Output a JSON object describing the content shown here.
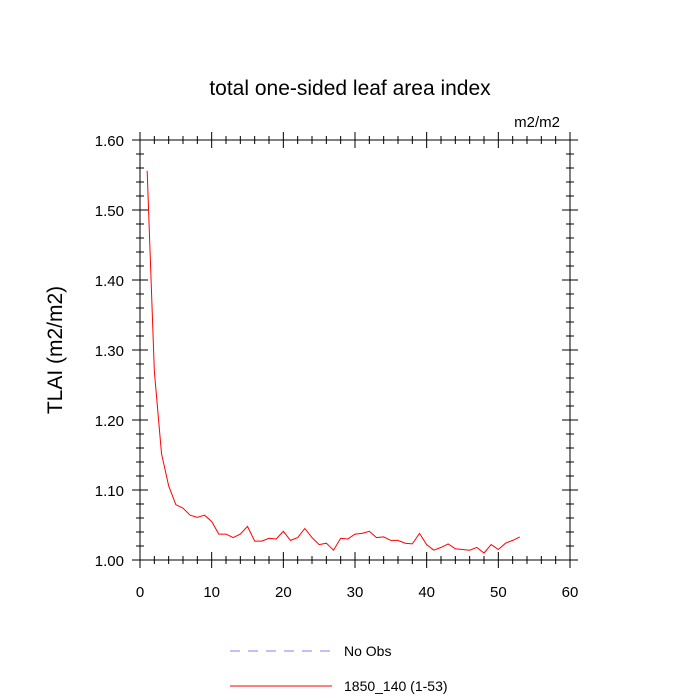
{
  "chart_data": {
    "type": "line",
    "title": "total one-sided leaf area index",
    "units_label": "m2/m2",
    "ylabel": "TLAI  (m2/m2)",
    "xlabel": "",
    "xlim": [
      0,
      60
    ],
    "ylim": [
      1.0,
      1.6
    ],
    "x_ticks": [
      0,
      10,
      20,
      30,
      40,
      50,
      60
    ],
    "x_tick_labels": [
      "0",
      "10",
      "20",
      "30",
      "40",
      "50",
      "60"
    ],
    "y_ticks": [
      1.0,
      1.1,
      1.2,
      1.3,
      1.4,
      1.5,
      1.6
    ],
    "y_tick_labels": [
      "1.00",
      "1.10",
      "1.20",
      "1.30",
      "1.40",
      "1.50",
      "1.60"
    ],
    "grid": false,
    "legend_position": "bottom",
    "series": [
      {
        "name": "No Obs",
        "color": "#8080ff",
        "dashed": true,
        "x": [],
        "y": []
      },
      {
        "name": "1850_140 (1-53)",
        "color": "#ff0000",
        "dashed": false,
        "x": [
          1,
          2,
          3,
          4,
          5,
          6,
          7,
          8,
          9,
          10,
          11,
          12,
          13,
          14,
          15,
          16,
          17,
          18,
          19,
          20,
          21,
          22,
          23,
          24,
          25,
          26,
          27,
          28,
          29,
          30,
          31,
          32,
          33,
          34,
          35,
          36,
          37,
          38,
          39,
          40,
          41,
          42,
          43,
          44,
          45,
          46,
          47,
          48,
          49,
          50,
          51,
          52,
          53
        ],
        "y": [
          1.556,
          1.27,
          1.152,
          1.106,
          1.079,
          1.074,
          1.064,
          1.061,
          1.064,
          1.055,
          1.037,
          1.037,
          1.032,
          1.037,
          1.048,
          1.027,
          1.027,
          1.031,
          1.03,
          1.041,
          1.028,
          1.032,
          1.045,
          1.032,
          1.022,
          1.024,
          1.014,
          1.031,
          1.03,
          1.037,
          1.038,
          1.041,
          1.032,
          1.033,
          1.028,
          1.028,
          1.024,
          1.023,
          1.038,
          1.022,
          1.014,
          1.018,
          1.023,
          1.016,
          1.015,
          1.014,
          1.018,
          1.01,
          1.022,
          1.015,
          1.024,
          1.028,
          1.033
        ]
      }
    ]
  }
}
